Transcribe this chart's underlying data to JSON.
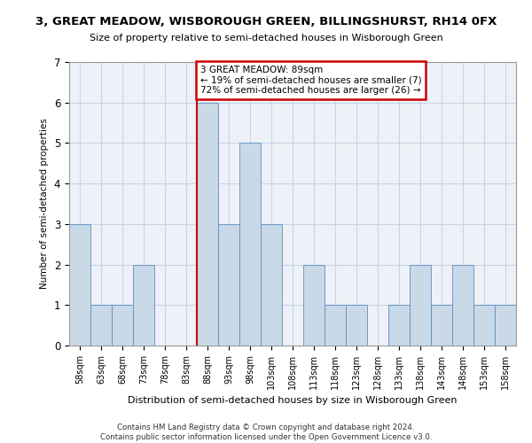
{
  "title": "3, GREAT MEADOW, WISBOROUGH GREEN, BILLINGSHURST, RH14 0FX",
  "subtitle": "Size of property relative to semi-detached houses in Wisborough Green",
  "xlabel": "Distribution of semi-detached houses by size in Wisborough Green",
  "ylabel": "Number of semi-detached properties",
  "categories": [
    "58sqm",
    "63sqm",
    "68sqm",
    "73sqm",
    "78sqm",
    "83sqm",
    "88sqm",
    "93sqm",
    "98sqm",
    "103sqm",
    "108sqm",
    "113sqm",
    "118sqm",
    "123sqm",
    "128sqm",
    "133sqm",
    "138sqm",
    "143sqm",
    "148sqm",
    "153sqm",
    "158sqm"
  ],
  "values": [
    3,
    1,
    1,
    2,
    0,
    0,
    6,
    3,
    5,
    3,
    0,
    2,
    1,
    1,
    0,
    1,
    2,
    1,
    2,
    1,
    1
  ],
  "subject_bin_index": 6,
  "subject_label": "3 GREAT MEADOW: 89sqm",
  "pct_smaller": 19,
  "n_smaller": 7,
  "pct_larger": 72,
  "n_larger": 26,
  "bar_color": "#c9d9e8",
  "bar_edge_color": "#5a8fc0",
  "subject_line_color": "#cc0000",
  "annotation_box_edge": "#cc0000",
  "grid_color": "#c8d4e4",
  "background_color": "#eef2f8",
  "ylim": [
    0,
    7
  ],
  "yticks": [
    0,
    1,
    2,
    3,
    4,
    5,
    6,
    7
  ],
  "footer_line1": "Contains HM Land Registry data © Crown copyright and database right 2024.",
  "footer_line2": "Contains public sector information licensed under the Open Government Licence v3.0."
}
